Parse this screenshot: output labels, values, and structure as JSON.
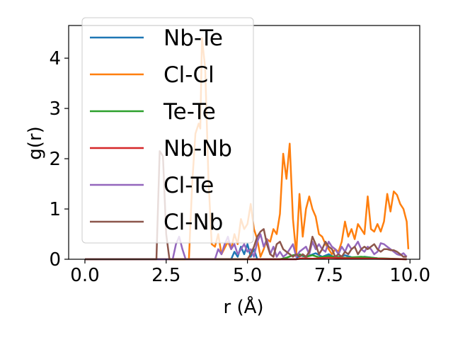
{
  "chart_data": {
    "type": "line",
    "title": "",
    "xlabel": "r (Å)",
    "ylabel": "g(r)",
    "xlim": [
      -0.5,
      10.3
    ],
    "ylim": [
      0,
      4.65
    ],
    "xticks": [
      0.0,
      2.5,
      5.0,
      7.5,
      10.0
    ],
    "xtick_labels": [
      "0.0",
      "2.5",
      "5.0",
      "7.5",
      "10.0"
    ],
    "yticks": [
      0,
      1,
      2,
      3,
      4
    ],
    "ytick_labels": [
      "0",
      "1",
      "2",
      "3",
      "4"
    ],
    "grid": false,
    "legend_position": "upper-left",
    "series": [
      {
        "name": "Nb-Te",
        "color": "#1f77b4",
        "points": [
          [
            0,
            0
          ],
          [
            4.5,
            0
          ],
          [
            4.6,
            0.15
          ],
          [
            4.7,
            0.05
          ],
          [
            4.8,
            0.25
          ],
          [
            4.9,
            0.1
          ],
          [
            5.0,
            0.3
          ],
          [
            5.1,
            0.05
          ],
          [
            5.2,
            0.2
          ],
          [
            5.3,
            0
          ],
          [
            5.5,
            0
          ],
          [
            6.5,
            0
          ],
          [
            6.6,
            0.08
          ],
          [
            6.8,
            0.05
          ],
          [
            7.1,
            0.12
          ],
          [
            7.3,
            0.05
          ],
          [
            7.5,
            0.1
          ],
          [
            7.7,
            0.03
          ],
          [
            8.0,
            0.08
          ],
          [
            8.3,
            0.02
          ],
          [
            8.6,
            0.05
          ],
          [
            9.0,
            0.02
          ],
          [
            9.9,
            0
          ]
        ]
      },
      {
        "name": "Cl-Cl",
        "color": "#ff7f0e",
        "points": [
          [
            0,
            0
          ],
          [
            3.2,
            0
          ],
          [
            3.3,
            1.5
          ],
          [
            3.4,
            2.5
          ],
          [
            3.5,
            2.7
          ],
          [
            3.55,
            2.6
          ],
          [
            3.6,
            4.4
          ],
          [
            3.7,
            3.8
          ],
          [
            3.8,
            1.6
          ],
          [
            3.9,
            0.3
          ],
          [
            4.0,
            0.25
          ],
          [
            4.1,
            0.5
          ],
          [
            4.2,
            0.1
          ],
          [
            4.4,
            0.35
          ],
          [
            4.5,
            0.2
          ],
          [
            4.6,
            0.5
          ],
          [
            4.7,
            0.3
          ],
          [
            4.8,
            0.8
          ],
          [
            4.9,
            0.6
          ],
          [
            5.0,
            0.7
          ],
          [
            5.1,
            1.1
          ],
          [
            5.2,
            0.6
          ],
          [
            5.3,
            0.4
          ],
          [
            5.4,
            0.05
          ],
          [
            5.5,
            0.2
          ],
          [
            5.6,
            0.4
          ],
          [
            5.7,
            0.35
          ],
          [
            5.8,
            0.6
          ],
          [
            5.9,
            0.5
          ],
          [
            6.0,
            0.9
          ],
          [
            6.1,
            2.1
          ],
          [
            6.2,
            1.6
          ],
          [
            6.3,
            2.3
          ],
          [
            6.4,
            0.8
          ],
          [
            6.5,
            0.1
          ],
          [
            6.6,
            1.3
          ],
          [
            6.7,
            0.45
          ],
          [
            6.8,
            1.0
          ],
          [
            6.9,
            1.25
          ],
          [
            7.0,
            1.0
          ],
          [
            7.1,
            0.85
          ],
          [
            7.2,
            0.5
          ],
          [
            7.3,
            0.45
          ],
          [
            7.4,
            0.3
          ],
          [
            7.5,
            0.2
          ],
          [
            7.6,
            0.1
          ],
          [
            7.7,
            0.2
          ],
          [
            7.8,
            0.15
          ],
          [
            7.9,
            0.35
          ],
          [
            8.0,
            0.75
          ],
          [
            8.1,
            0.45
          ],
          [
            8.2,
            0.6
          ],
          [
            8.3,
            0.4
          ],
          [
            8.4,
            0.7
          ],
          [
            8.5,
            0.6
          ],
          [
            8.6,
            0.5
          ],
          [
            8.7,
            1.25
          ],
          [
            8.8,
            0.6
          ],
          [
            8.9,
            0.55
          ],
          [
            9.0,
            0.7
          ],
          [
            9.1,
            0.55
          ],
          [
            9.2,
            0.75
          ],
          [
            9.3,
            1.3
          ],
          [
            9.4,
            0.95
          ],
          [
            9.5,
            1.35
          ],
          [
            9.6,
            1.28
          ],
          [
            9.7,
            1.1
          ],
          [
            9.8,
            1.0
          ],
          [
            9.9,
            0.75
          ],
          [
            9.95,
            0.2
          ]
        ]
      },
      {
        "name": "Te-Te",
        "color": "#2ca02c",
        "points": [
          [
            0,
            0
          ],
          [
            6.0,
            0
          ],
          [
            6.2,
            0.03
          ],
          [
            6.4,
            0.08
          ],
          [
            6.6,
            0.1
          ],
          [
            6.8,
            0.05
          ],
          [
            7.0,
            0.08
          ],
          [
            7.2,
            0.04
          ],
          [
            7.5,
            0.06
          ],
          [
            8.0,
            0.03
          ],
          [
            8.5,
            0.05
          ],
          [
            9.0,
            0.02
          ],
          [
            9.9,
            0
          ]
        ]
      },
      {
        "name": "Nb-Nb",
        "color": "#d62728",
        "points": [
          [
            0,
            0
          ],
          [
            6.5,
            0
          ],
          [
            6.7,
            0.02
          ],
          [
            7.0,
            0.01
          ],
          [
            7.5,
            0.03
          ],
          [
            8.0,
            0.02
          ],
          [
            9.9,
            0
          ]
        ]
      },
      {
        "name": "Cl-Te",
        "color": "#9467bd",
        "points": [
          [
            0,
            0
          ],
          [
            2.7,
            0
          ],
          [
            2.8,
            0.3
          ],
          [
            2.9,
            0.45
          ],
          [
            3.0,
            0.2
          ],
          [
            3.1,
            0
          ],
          [
            4.0,
            0
          ],
          [
            4.1,
            0.2
          ],
          [
            4.2,
            0.1
          ],
          [
            4.3,
            0.3
          ],
          [
            4.4,
            0.45
          ],
          [
            4.5,
            0.2
          ],
          [
            4.6,
            0.3
          ],
          [
            4.7,
            0.1
          ],
          [
            4.8,
            0.2
          ],
          [
            4.9,
            0.3
          ],
          [
            5.0,
            0.15
          ],
          [
            5.1,
            0.2
          ],
          [
            5.2,
            0.05
          ],
          [
            5.3,
            0.35
          ],
          [
            5.4,
            0.5
          ],
          [
            5.5,
            0.25
          ],
          [
            5.6,
            0.4
          ],
          [
            5.7,
            0.1
          ],
          [
            5.8,
            0.25
          ],
          [
            5.9,
            0.05
          ],
          [
            6.0,
            0.15
          ],
          [
            6.1,
            0.05
          ],
          [
            6.2,
            0.1
          ],
          [
            6.3,
            0.2
          ],
          [
            6.4,
            0.3
          ],
          [
            6.5,
            0.05
          ],
          [
            6.6,
            0.15
          ],
          [
            6.8,
            0.25
          ],
          [
            6.9,
            0.1
          ],
          [
            7.0,
            0.35
          ],
          [
            7.1,
            0.2
          ],
          [
            7.2,
            0.3
          ],
          [
            7.3,
            0.2
          ],
          [
            7.4,
            0.15
          ],
          [
            7.5,
            0.35
          ],
          [
            7.6,
            0.25
          ],
          [
            7.7,
            0.2
          ],
          [
            7.8,
            0.1
          ],
          [
            7.9,
            0.25
          ],
          [
            8.0,
            0.15
          ],
          [
            8.1,
            0.3
          ],
          [
            8.2,
            0.2
          ],
          [
            8.3,
            0.25
          ],
          [
            8.4,
            0.35
          ],
          [
            8.5,
            0.2
          ],
          [
            8.6,
            0.15
          ],
          [
            8.7,
            0.25
          ],
          [
            8.8,
            0.2
          ],
          [
            8.9,
            0.1
          ],
          [
            9.0,
            0.15
          ],
          [
            9.1,
            0.32
          ],
          [
            9.2,
            0.3
          ],
          [
            9.3,
            0.25
          ],
          [
            9.4,
            0.2
          ],
          [
            9.5,
            0.15
          ],
          [
            9.6,
            0.1
          ],
          [
            9.7,
            0.08
          ],
          [
            9.8,
            0.12
          ],
          [
            9.9,
            0.05
          ]
        ]
      },
      {
        "name": "Cl-Nb",
        "color": "#8c564b",
        "points": [
          [
            0,
            0
          ],
          [
            2.2,
            0
          ],
          [
            2.3,
            2.15
          ],
          [
            2.4,
            2.05
          ],
          [
            2.5,
            0.5
          ],
          [
            2.6,
            0
          ],
          [
            5.0,
            0
          ],
          [
            5.1,
            0.1
          ],
          [
            5.2,
            0.25
          ],
          [
            5.3,
            0.45
          ],
          [
            5.4,
            0.55
          ],
          [
            5.5,
            0.6
          ],
          [
            5.6,
            0.3
          ],
          [
            5.7,
            0.1
          ],
          [
            5.8,
            0.05
          ],
          [
            5.9,
            0.3
          ],
          [
            6.0,
            0.35
          ],
          [
            6.1,
            0.2
          ],
          [
            6.2,
            0.15
          ],
          [
            6.3,
            0.1
          ],
          [
            6.4,
            0.05
          ],
          [
            6.5,
            0.1
          ],
          [
            6.6,
            0.05
          ],
          [
            6.7,
            0.1
          ],
          [
            6.8,
            0.05
          ],
          [
            6.9,
            0.15
          ],
          [
            7.0,
            0.45
          ],
          [
            7.1,
            0.3
          ],
          [
            7.2,
            0.1
          ],
          [
            7.3,
            0.2
          ],
          [
            7.4,
            0.35
          ],
          [
            7.5,
            0.25
          ],
          [
            7.6,
            0.2
          ],
          [
            7.7,
            0.05
          ],
          [
            7.8,
            0.1
          ],
          [
            7.9,
            0.05
          ],
          [
            8.0,
            0.15
          ],
          [
            8.1,
            0.1
          ],
          [
            8.2,
            0.2
          ],
          [
            8.3,
            0.25
          ],
          [
            8.4,
            0.1
          ],
          [
            8.5,
            0.2
          ],
          [
            8.6,
            0.25
          ],
          [
            8.7,
            0.2
          ],
          [
            8.8,
            0.25
          ],
          [
            8.9,
            0.3
          ],
          [
            9.0,
            0.2
          ],
          [
            9.1,
            0.15
          ],
          [
            9.2,
            0.2
          ],
          [
            9.3,
            0.2
          ],
          [
            9.4,
            0.18
          ],
          [
            9.5,
            0.18
          ],
          [
            9.6,
            0.15
          ],
          [
            9.7,
            0.1
          ],
          [
            9.8,
            0.05
          ],
          [
            9.9,
            0.05
          ]
        ]
      }
    ]
  }
}
